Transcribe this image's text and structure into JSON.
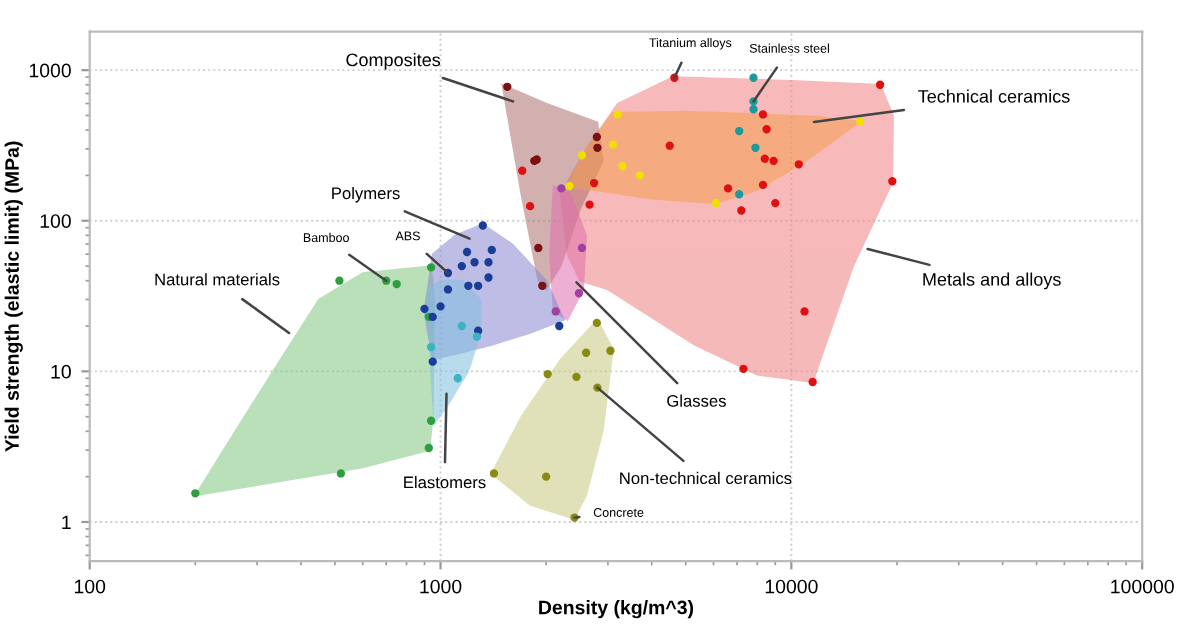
{
  "chart_data": {
    "type": "scatter",
    "xlabel": "Density (kg/m^3)",
    "ylabel": "Yield strength (elastic limit) (MPa)",
    "log": "xy",
    "xlim": [
      100,
      100000
    ],
    "ylim": [
      0.55,
      1800
    ],
    "xticks": [
      100,
      1000,
      10000,
      100000
    ],
    "yticks": [
      1,
      10,
      100,
      1000
    ],
    "grid": true,
    "marker": "circle",
    "series": [
      {
        "type": "area",
        "marker": "none",
        "color": "#f08080",
        "x": [
          2200,
          2600,
          3200,
          4600,
          10000,
          17900,
          19500,
          19400,
          15000,
          11500,
          8000,
          5300,
          3000,
          2500,
          2300,
          2200
        ],
        "values": [
          150,
          300,
          600,
          900,
          850,
          800,
          500,
          180,
          50,
          8.5,
          9.5,
          15,
          35,
          40,
          60,
          150
        ]
      },
      {
        "type": "area",
        "marker": "none",
        "color": "#b07070",
        "x": [
          1500,
          2000,
          2800,
          2900,
          2500,
          2200,
          2000,
          1900,
          1700,
          1500
        ],
        "values": [
          800,
          600,
          450,
          250,
          120,
          50,
          35,
          40,
          150,
          800
        ]
      },
      {
        "type": "area",
        "marker": "none",
        "color": "#f5a050",
        "x": [
          2300,
          2600,
          3100,
          5000,
          8100,
          12000,
          15700,
          11000,
          8000,
          6100,
          4000,
          2300
        ],
        "values": [
          170,
          300,
          520,
          530,
          510,
          490,
          455,
          250,
          160,
          131,
          140,
          170
        ]
      },
      {
        "type": "area",
        "marker": "none",
        "color": "#e070b0",
        "x": [
          2100,
          2350,
          2600,
          2550,
          2300,
          2100,
          2050,
          2100
        ],
        "values": [
          170,
          150,
          80,
          35,
          22,
          25,
          60,
          170
        ]
      },
      {
        "type": "area",
        "marker": "none",
        "color": "#80c880",
        "x": [
          200,
          260,
          350,
          450,
          600,
          940,
          960,
          950,
          930,
          600,
          200
        ],
        "values": [
          1.5,
          4,
          12,
          30,
          45,
          50,
          30,
          5,
          3,
          2.3,
          1.5
        ]
      },
      {
        "type": "area",
        "marker": "none",
        "color": "#8888d0",
        "x": [
          900,
          950,
          1100,
          1320,
          1600,
          2000,
          2250,
          1800,
          1400,
          1100,
          950,
          900
        ],
        "values": [
          25,
          60,
          80,
          95,
          70,
          40,
          22,
          18,
          15,
          13,
          12,
          25
        ]
      },
      {
        "type": "area",
        "marker": "none",
        "color": "#80c0e0",
        "x": [
          920,
          1000,
          1150,
          1300,
          1300,
          1200,
          1050,
          960,
          940,
          920
        ],
        "values": [
          35,
          40,
          40,
          30,
          18,
          10,
          6,
          4.5,
          10,
          35
        ]
      },
      {
        "type": "area",
        "marker": "none",
        "color": "#c8c880",
        "x": [
          1400,
          1700,
          2200,
          2800,
          3100,
          2900,
          2600,
          2400,
          1800,
          1400
        ],
        "values": [
          2.1,
          5,
          12,
          22,
          14,
          4,
          1.5,
          1.05,
          1.3,
          2.1
        ]
      },
      {
        "color": "#2e9e3e",
        "x": [
          200,
          520,
          926,
          940,
          515,
          700,
          750,
          940,
          926
        ],
        "values": [
          1.55,
          2.1,
          3.1,
          4.7,
          40,
          40,
          38,
          49,
          23
        ]
      },
      {
        "color": "#1a3d9a",
        "x": [
          1320,
          1050,
          1150,
          1190,
          1250,
          1370,
          1400,
          1370,
          1200,
          1280,
          1000,
          1050,
          1280,
          2180,
          950,
          900,
          950
        ],
        "values": [
          93,
          45,
          50,
          62,
          53,
          53,
          64,
          42,
          37,
          37,
          27,
          35,
          18.6,
          20,
          23,
          26,
          11.6
        ]
      },
      {
        "color": "#3bb3c3",
        "x": [
          1150,
          1270,
          1120,
          940
        ],
        "values": [
          20,
          17,
          9.0,
          14.5
        ]
      },
      {
        "color": "#a040a0",
        "x": [
          2210,
          2530,
          2480,
          2130
        ],
        "values": [
          164,
          66,
          33,
          25
        ]
      },
      {
        "color": "#7a1010",
        "x": [
          1550,
          1850,
          1900,
          1950,
          1880,
          2790,
          2800
        ],
        "values": [
          775,
          250,
          66,
          37,
          255,
          360,
          305
        ]
      },
      {
        "color": "#e01010",
        "x": [
          4640,
          17900,
          19400,
          10900,
          7300,
          11500,
          8300,
          8500,
          8400,
          8900,
          10500,
          8300,
          9000,
          6600,
          7200,
          4500,
          2740,
          2660,
          1710,
          1800
        ],
        "values": [
          890,
          800,
          183,
          25,
          10.4,
          8.5,
          508,
          405,
          258,
          250,
          237,
          173,
          131,
          164,
          117,
          315,
          178,
          128,
          215,
          125
        ]
      },
      {
        "color": "#1a9a9a",
        "x": [
          7800,
          7800,
          7800,
          7100,
          7900,
          7100
        ],
        "values": [
          890,
          620,
          550,
          394,
          305,
          150
        ]
      },
      {
        "color": "#f0e000",
        "x": [
          2330,
          2530,
          3100,
          3200,
          3300,
          3700,
          6100,
          15700
        ],
        "values": [
          170,
          272,
          320,
          508,
          230,
          200,
          131,
          455
        ]
      },
      {
        "color": "#8a8a10",
        "x": [
          2790,
          3050,
          2600,
          2020,
          2440,
          2800,
          2000,
          2410,
          1420
        ],
        "values": [
          21,
          13.7,
          13.3,
          9.6,
          9.2,
          7.8,
          2.0,
          1.07,
          2.1
        ]
      }
    ],
    "annotations": [
      {
        "text": "Composites",
        "x": 1610,
        "y": 620
      },
      {
        "text": "Titanium alloys",
        "x": 4640,
        "y": 890
      },
      {
        "text": "Stainless steel",
        "x": 7800,
        "y": 620
      },
      {
        "text": "Technical ceramics",
        "x": 11600,
        "y": 453
      },
      {
        "text": "Polymers",
        "x": 1210,
        "y": 76
      },
      {
        "text": "Bamboo",
        "x": 700,
        "y": 40
      },
      {
        "text": "ABS",
        "x": 1050,
        "y": 45
      },
      {
        "text": "Natural materials",
        "x": 370,
        "y": 18
      },
      {
        "text": "Metals and alloys",
        "x": 16500,
        "y": 65
      },
      {
        "text": "Glasses",
        "x": 2440,
        "y": 39
      },
      {
        "text": "Elastomers",
        "x": 1040,
        "y": 7.1
      },
      {
        "text": "Non-technical ceramics",
        "x": 2800,
        "y": 7.8
      },
      {
        "text": "Concrete",
        "x": 2410,
        "y": 1.07
      }
    ]
  }
}
